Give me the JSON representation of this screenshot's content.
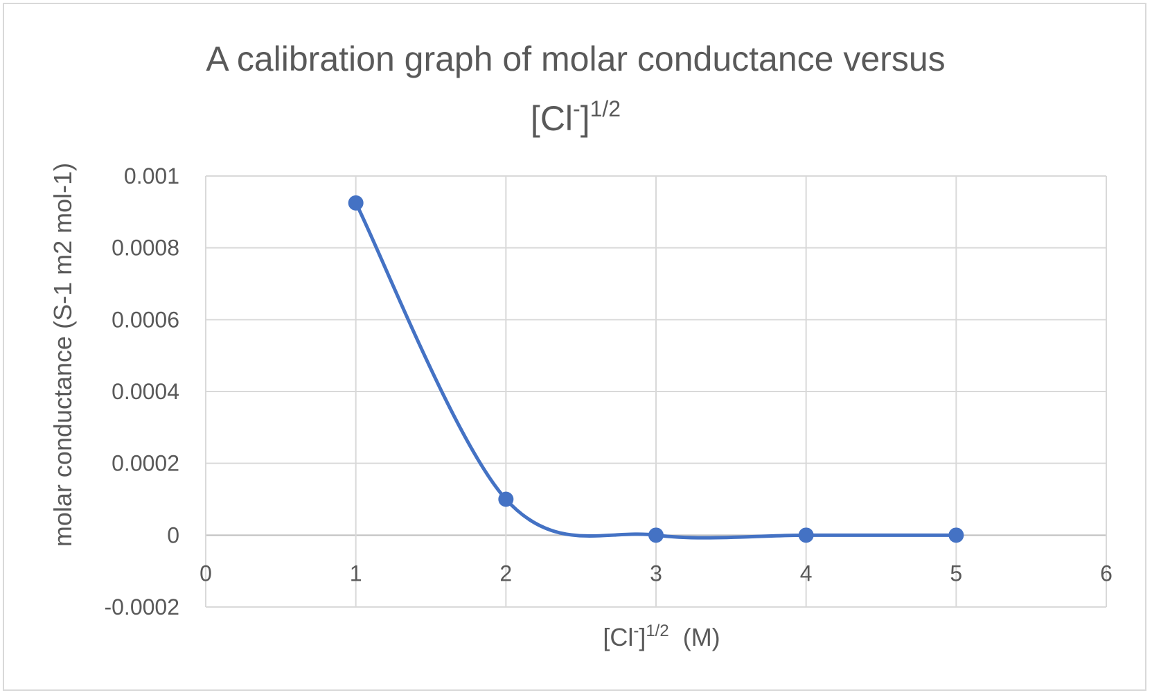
{
  "chart_data": {
    "type": "scatter",
    "title": {
      "line1": "A calibration graph of molar conductance versus",
      "line2_base": "[Cl",
      "line2_sup1": "-",
      "line2_mid": "]",
      "line2_sup2": "1/2"
    },
    "xlabel": {
      "base": "[Cl",
      "sup1": "-",
      "mid": "]",
      "sup2": "1/2",
      "unit": "  (M)"
    },
    "ylabel": "molar conductance (S-1 m2 mol-1)",
    "xlim": [
      0,
      6
    ],
    "ylim": [
      -0.0002,
      0.001
    ],
    "x_ticks": [
      "0",
      "1",
      "2",
      "3",
      "4",
      "5",
      "6"
    ],
    "y_ticks": [
      "-0.0002",
      "0",
      "0.0002",
      "0.0004",
      "0.0006",
      "0.0008",
      "0.001"
    ],
    "grid": true,
    "smooth_line": true,
    "series": [
      {
        "color": "#4472c4",
        "x": [
          1,
          2,
          3,
          4,
          5
        ],
        "y": [
          0.000925,
          0.0001,
          0.0,
          0.0,
          0.0
        ]
      }
    ]
  }
}
